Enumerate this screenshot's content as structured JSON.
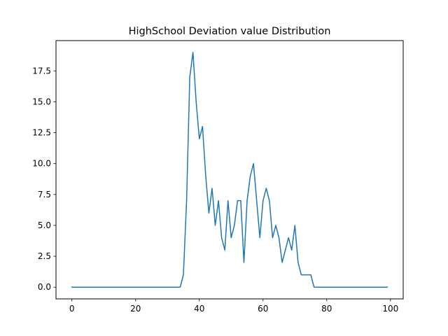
{
  "chart_data": {
    "type": "line",
    "title": "HighSchool Deviation value Distribution",
    "xlabel": "",
    "ylabel": "",
    "xlim": [
      -5,
      104
    ],
    "ylim": [
      -0.95,
      19.95
    ],
    "xticks": [
      0,
      20,
      40,
      60,
      80,
      100
    ],
    "yticks": [
      0.0,
      2.5,
      5.0,
      7.5,
      10.0,
      12.5,
      15.0,
      17.5
    ],
    "x_tick_labels": [
      "0",
      "20",
      "40",
      "60",
      "80",
      "100"
    ],
    "y_tick_labels": [
      "0.0",
      "2.5",
      "5.0",
      "7.5",
      "10.0",
      "12.5",
      "15.0",
      "17.5"
    ],
    "grid": false,
    "series": [
      {
        "color": "#1f77b4",
        "x": [
          0,
          1,
          2,
          3,
          4,
          5,
          6,
          7,
          8,
          9,
          10,
          11,
          12,
          13,
          14,
          15,
          16,
          17,
          18,
          19,
          20,
          21,
          22,
          23,
          24,
          25,
          26,
          27,
          28,
          29,
          30,
          31,
          32,
          33,
          34,
          35,
          36,
          37,
          38,
          39,
          40,
          41,
          42,
          43,
          44,
          45,
          46,
          47,
          48,
          49,
          50,
          51,
          52,
          53,
          54,
          55,
          56,
          57,
          58,
          59,
          60,
          61,
          62,
          63,
          64,
          65,
          66,
          67,
          68,
          69,
          70,
          71,
          72,
          73,
          74,
          75,
          76,
          77,
          78,
          79,
          80,
          81,
          82,
          83,
          84,
          85,
          86,
          87,
          88,
          89,
          90,
          91,
          92,
          93,
          94,
          95,
          96,
          97,
          98,
          99
        ],
        "values": [
          0,
          0,
          0,
          0,
          0,
          0,
          0,
          0,
          0,
          0,
          0,
          0,
          0,
          0,
          0,
          0,
          0,
          0,
          0,
          0,
          0,
          0,
          0,
          0,
          0,
          0,
          0,
          0,
          0,
          0,
          0,
          0,
          0,
          0,
          0,
          1,
          7,
          17,
          19,
          15,
          12,
          13,
          9,
          6,
          8,
          5,
          7,
          4,
          3,
          7,
          4,
          5,
          7,
          7,
          2,
          7,
          9,
          10,
          7,
          4,
          7,
          8,
          7,
          4,
          5,
          4,
          2,
          3,
          4,
          3,
          5,
          2,
          1,
          1,
          1,
          1,
          0,
          0,
          0,
          0,
          0,
          0,
          0,
          0,
          0,
          0,
          0,
          0,
          0,
          0,
          0,
          0,
          0,
          0,
          0,
          0,
          0,
          0,
          0,
          0
        ]
      }
    ]
  }
}
